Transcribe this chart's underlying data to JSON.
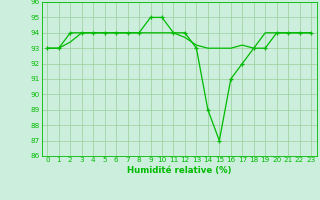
{
  "line1_x": [
    0,
    1,
    2,
    3,
    4,
    5,
    6,
    7,
    8,
    9,
    10,
    11,
    12,
    13,
    14,
    15,
    16,
    17,
    18,
    19,
    20,
    21,
    22,
    23
  ],
  "line1_y": [
    93,
    93,
    94,
    94,
    94,
    94,
    94,
    94,
    94,
    95,
    95,
    94,
    94,
    93,
    89,
    87,
    91,
    92,
    93,
    93,
    94,
    94,
    94,
    94
  ],
  "line2_x": [
    0,
    1,
    2,
    3,
    4,
    5,
    6,
    7,
    8,
    9,
    10,
    11,
    12,
    13,
    14,
    15,
    16,
    17,
    18,
    19,
    20,
    21,
    22,
    23
  ],
  "line2_y": [
    93,
    93,
    93.4,
    94,
    94,
    94,
    94,
    94,
    94,
    94,
    94,
    94,
    93.7,
    93.2,
    93,
    93,
    93,
    93.2,
    93,
    94,
    94,
    94,
    94,
    94
  ],
  "line_color": "#00bb00",
  "bg_color": "#cceedd",
  "grid_color": "#99cc99",
  "xlabel": "Humidité relative (%)",
  "ylim": [
    86,
    96
  ],
  "xlim_min": -0.5,
  "xlim_max": 23.5,
  "yticks": [
    86,
    87,
    88,
    89,
    90,
    91,
    92,
    93,
    94,
    95,
    96
  ],
  "xticks": [
    0,
    1,
    2,
    3,
    4,
    5,
    6,
    7,
    8,
    9,
    10,
    11,
    12,
    13,
    14,
    15,
    16,
    17,
    18,
    19,
    20,
    21,
    22,
    23
  ],
  "tick_fontsize": 5.2,
  "xlabel_fontsize": 6.2
}
